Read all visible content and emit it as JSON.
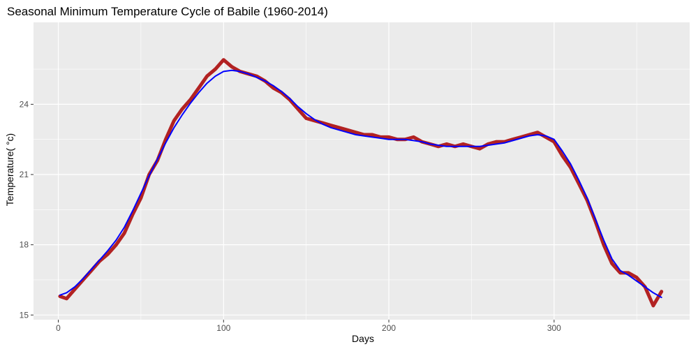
{
  "chart_data": {
    "type": "line",
    "title": "Seasonal Minimum Temperature Cycle of Babile (1960-2014)",
    "xlabel": "Days",
    "ylabel": "Temperature( °c)",
    "xlim": [
      -15,
      382
    ],
    "ylim": [
      14.8,
      27.5
    ],
    "x_ticks": [
      0,
      100,
      200,
      300
    ],
    "x_tick_labels": [
      "0",
      "100",
      "200",
      "300"
    ],
    "y_ticks": [
      15,
      18,
      21,
      24
    ],
    "y_tick_labels": [
      "15",
      "18",
      "21",
      "24"
    ],
    "grid": true,
    "panel_background": "#ebebeb",
    "grid_color": "#ffffff",
    "series": [
      {
        "role": "daily",
        "color": "#b22222",
        "x": [
          1,
          5,
          10,
          15,
          20,
          25,
          30,
          35,
          40,
          45,
          50,
          55,
          60,
          65,
          70,
          75,
          80,
          85,
          90,
          95,
          100,
          105,
          110,
          115,
          120,
          125,
          130,
          135,
          140,
          145,
          150,
          155,
          160,
          165,
          170,
          175,
          180,
          185,
          190,
          195,
          200,
          205,
          210,
          215,
          220,
          225,
          230,
          235,
          240,
          245,
          250,
          255,
          260,
          265,
          270,
          275,
          280,
          285,
          290,
          295,
          300,
          305,
          310,
          315,
          320,
          325,
          330,
          335,
          340,
          345,
          350,
          355,
          360,
          365
        ],
        "values": [
          15.8,
          15.7,
          16.1,
          16.5,
          16.9,
          17.3,
          17.6,
          18.0,
          18.5,
          19.3,
          20.0,
          21.0,
          21.6,
          22.5,
          23.3,
          23.8,
          24.2,
          24.7,
          25.2,
          25.5,
          25.9,
          25.6,
          25.4,
          25.3,
          25.2,
          25.0,
          24.7,
          24.5,
          24.2,
          23.8,
          23.4,
          23.3,
          23.2,
          23.1,
          23.0,
          22.9,
          22.8,
          22.7,
          22.7,
          22.6,
          22.6,
          22.5,
          22.5,
          22.6,
          22.4,
          22.3,
          22.2,
          22.3,
          22.2,
          22.3,
          22.2,
          22.1,
          22.3,
          22.4,
          22.4,
          22.5,
          22.6,
          22.7,
          22.8,
          22.6,
          22.4,
          21.8,
          21.3,
          20.6,
          19.9,
          19.0,
          18.0,
          17.2,
          16.8,
          16.8,
          16.6,
          16.2,
          15.4,
          16.0
        ]
      },
      {
        "role": "smooth",
        "color": "#0000ff",
        "x": [
          1,
          5,
          10,
          15,
          20,
          25,
          30,
          35,
          40,
          45,
          50,
          55,
          60,
          65,
          70,
          75,
          80,
          85,
          90,
          95,
          100,
          105,
          110,
          115,
          120,
          125,
          130,
          135,
          140,
          145,
          150,
          155,
          160,
          165,
          170,
          175,
          180,
          185,
          190,
          195,
          200,
          205,
          210,
          215,
          220,
          225,
          230,
          235,
          240,
          245,
          250,
          255,
          260,
          265,
          270,
          275,
          280,
          285,
          290,
          295,
          300,
          305,
          310,
          315,
          320,
          325,
          330,
          335,
          340,
          345,
          350,
          355,
          360,
          365
        ],
        "values": [
          15.85,
          15.95,
          16.2,
          16.55,
          16.95,
          17.35,
          17.75,
          18.2,
          18.75,
          19.45,
          20.2,
          20.95,
          21.65,
          22.35,
          23.0,
          23.55,
          24.05,
          24.5,
          24.9,
          25.2,
          25.4,
          25.45,
          25.4,
          25.3,
          25.15,
          25.0,
          24.8,
          24.55,
          24.25,
          23.9,
          23.6,
          23.35,
          23.15,
          23.0,
          22.9,
          22.8,
          22.7,
          22.65,
          22.6,
          22.55,
          22.5,
          22.5,
          22.5,
          22.45,
          22.4,
          22.3,
          22.25,
          22.2,
          22.2,
          22.2,
          22.2,
          22.2,
          22.25,
          22.3,
          22.35,
          22.45,
          22.55,
          22.65,
          22.7,
          22.65,
          22.5,
          22.0,
          21.45,
          20.75,
          20.0,
          19.1,
          18.2,
          17.4,
          16.9,
          16.7,
          16.45,
          16.2,
          15.95,
          15.75
        ]
      }
    ]
  }
}
